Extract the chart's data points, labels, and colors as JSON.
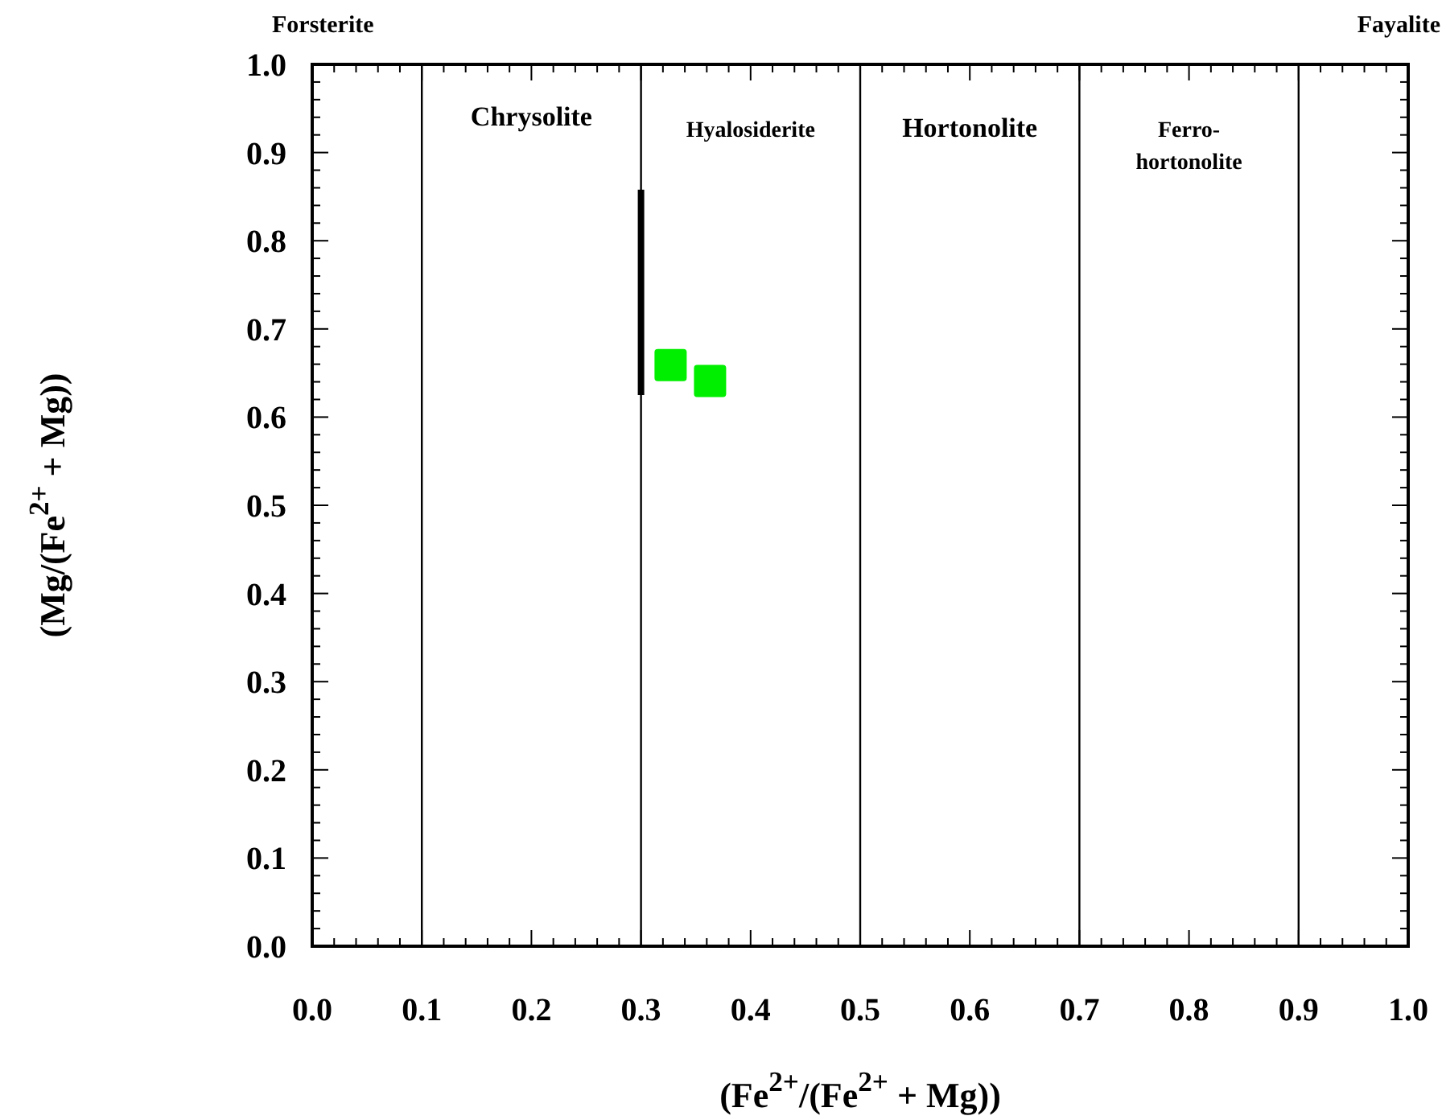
{
  "chart_data": {
    "type": "scatter",
    "xlabel": "(Fe$^{2+}$/(Fe$^{2+}$ + Mg))",
    "ylabel": "(Mg/(Fe$^{2+}$ + Mg))",
    "xlim": [
      0,
      1
    ],
    "ylim": [
      0,
      1
    ],
    "xticks": [
      {
        "value": 0,
        "label": "0.0"
      },
      {
        "value": 0.02,
        "label": null
      },
      {
        "value": 0.04,
        "label": null
      },
      {
        "value": 0.06,
        "label": null
      },
      {
        "value": 0.08,
        "label": null
      },
      0.1,
      {
        "value": 0.12,
        "label": null
      },
      {
        "value": 0.14,
        "label": null
      },
      {
        "value": 0.16,
        "label": null
      },
      {
        "value": 0.18,
        "label": null
      },
      0.2,
      {
        "value": 0.22,
        "label": null
      },
      {
        "value": 0.24,
        "label": null
      },
      {
        "value": 0.26,
        "label": null
      },
      {
        "value": 0.28,
        "label": null
      },
      0.3,
      {
        "value": 0.32,
        "label": null
      },
      {
        "value": 0.34,
        "label": null
      },
      {
        "value": 0.36,
        "label": null
      },
      {
        "value": 0.38,
        "label": null
      },
      0.4,
      {
        "value": 0.42,
        "label": null
      },
      {
        "value": 0.44,
        "label": null
      },
      {
        "value": 0.46,
        "label": null
      },
      {
        "value": 0.48,
        "label": null
      },
      0.5,
      {
        "value": 0.52,
        "label": null
      },
      {
        "value": 0.54,
        "label": null
      },
      {
        "value": 0.56,
        "label": null
      },
      {
        "value": 0.58,
        "label": null
      },
      0.6,
      {
        "value": 0.62,
        "label": null
      },
      {
        "value": 0.64,
        "label": null
      },
      {
        "value": 0.66,
        "label": null
      },
      {
        "value": 0.68,
        "label": null
      },
      0.7,
      {
        "value": 0.72,
        "label": null
      },
      {
        "value": 0.74,
        "label": null
      },
      {
        "value": 0.76,
        "label": null
      },
      {
        "value": 0.78,
        "label": null
      },
      0.8,
      {
        "value": 0.82,
        "label": null
      },
      {
        "value": 0.84,
        "label": null
      },
      {
        "value": 0.86,
        "label": null
      },
      {
        "value": 0.88,
        "label": null
      },
      0.9,
      {
        "value": 0.92,
        "label": null
      },
      {
        "value": 0.94,
        "label": null
      },
      {
        "value": 0.96,
        "label": null
      },
      {
        "value": 0.98,
        "label": null
      },
      {
        "value": 1,
        "label": "1.0"
      }
    ],
    "yticks": [
      {
        "value": 0,
        "label": "0.0"
      },
      {
        "value": 0.02,
        "label": null
      },
      {
        "value": 0.04,
        "label": null
      },
      {
        "value": 0.06,
        "label": null
      },
      {
        "value": 0.08,
        "label": null
      },
      0.1,
      {
        "value": 0.12,
        "label": null
      },
      {
        "value": 0.14,
        "label": null
      },
      {
        "value": 0.16,
        "label": null
      },
      {
        "value": 0.18,
        "label": null
      },
      0.2,
      {
        "value": 0.22,
        "label": null
      },
      {
        "value": 0.24,
        "label": null
      },
      {
        "value": 0.26,
        "label": null
      },
      {
        "value": 0.28,
        "label": null
      },
      0.3,
      {
        "value": 0.32,
        "label": null
      },
      {
        "value": 0.34,
        "label": null
      },
      {
        "value": 0.36,
        "label": null
      },
      {
        "value": 0.38,
        "label": null
      },
      0.4,
      {
        "value": 0.42,
        "label": null
      },
      {
        "value": 0.44,
        "label": null
      },
      {
        "value": 0.46,
        "label": null
      },
      {
        "value": 0.48,
        "label": null
      },
      0.5,
      {
        "value": 0.52,
        "label": null
      },
      {
        "value": 0.54,
        "label": null
      },
      {
        "value": 0.56,
        "label": null
      },
      {
        "value": 0.58,
        "label": null
      },
      0.6,
      {
        "value": 0.62,
        "label": null
      },
      {
        "value": 0.64,
        "label": null
      },
      {
        "value": 0.66,
        "label": null
      },
      {
        "value": 0.68,
        "label": null
      },
      0.7,
      {
        "value": 0.72,
        "label": null
      },
      {
        "value": 0.74,
        "label": null
      },
      {
        "value": 0.76,
        "label": null
      },
      {
        "value": 0.78,
        "label": null
      },
      0.8,
      {
        "value": 0.82,
        "label": null
      },
      {
        "value": 0.84,
        "label": null
      },
      {
        "value": 0.86,
        "label": null
      },
      {
        "value": 0.88,
        "label": null
      },
      0.9,
      {
        "value": 0.92,
        "label": null
      },
      {
        "value": 0.94,
        "label": null
      },
      {
        "value": 0.96,
        "label": null
      },
      {
        "value": 0.98,
        "label": null
      },
      {
        "value": 1,
        "label": "1.0"
      }
    ],
    "grid": false,
    "series": [
      {
        "color": "#00ee00",
        "marker": "square",
        "x": [
          0.327,
          0.363
        ],
        "values": [
          0.659,
          0.641
        ]
      },
      {
        "type": "line",
        "color": "#000000",
        "line_style": "solid",
        "x": [
          0.3,
          0.3
        ],
        "values": [
          0.625,
          0.858
        ]
      }
    ],
    "ref_lines": [
      {
        "axis": "x",
        "value": 0.1,
        "color": "#000000"
      },
      {
        "axis": "x",
        "value": 0.3,
        "color": "#000000"
      },
      {
        "axis": "x",
        "value": 0.5,
        "color": "#000000"
      },
      {
        "axis": "x",
        "value": 0.7,
        "color": "#000000"
      },
      {
        "axis": "x",
        "value": 0.9,
        "color": "#000000"
      }
    ],
    "annotations": [
      "Forsterite",
      "Fayalite",
      "Chrysolite",
      "Hyalosiderite",
      "Hortonolite",
      "Ferro-\nhortonolite"
    ]
  }
}
